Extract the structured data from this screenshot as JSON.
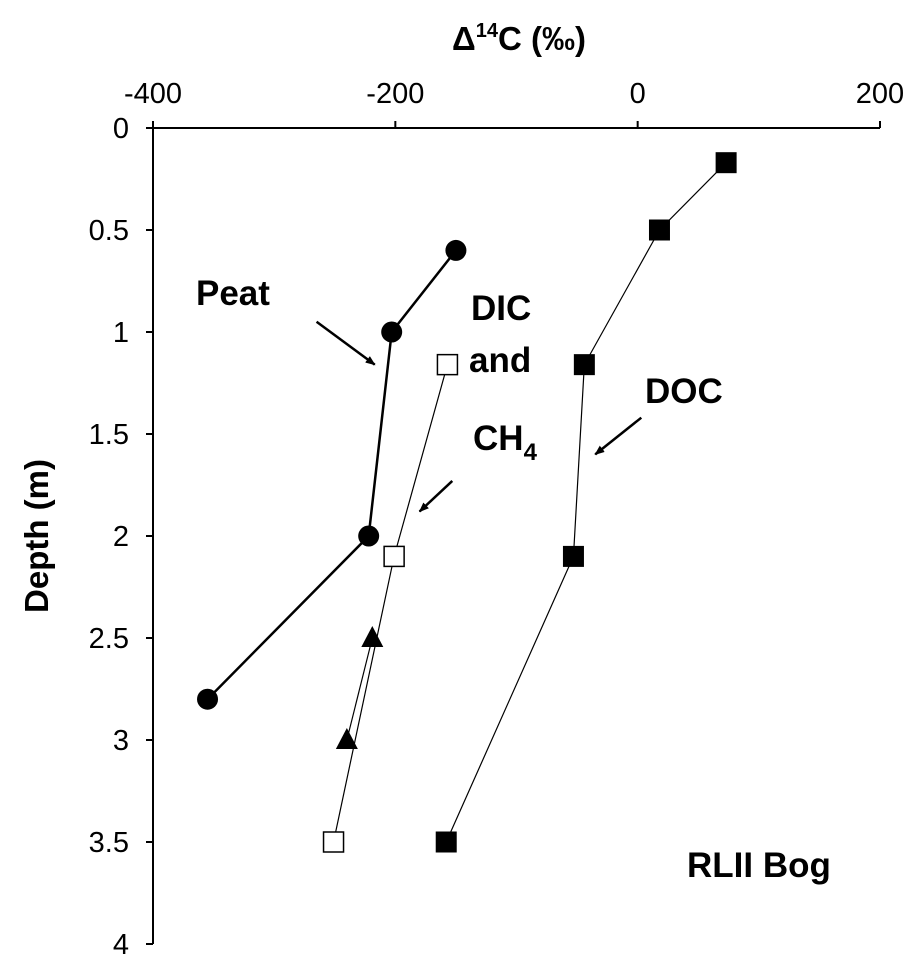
{
  "chart_data": {
    "type": "scatter",
    "title": "",
    "x_axis": {
      "label_main": "Δ",
      "label_sup": "14",
      "label_tail": "C (‰)",
      "position": "top",
      "range": [
        -400,
        200
      ],
      "ticks": [
        -400,
        -200,
        0,
        200
      ]
    },
    "y_axis": {
      "label": "Depth (m)",
      "range": [
        0,
        4
      ],
      "inverted": true,
      "ticks": [
        0,
        0.5,
        1,
        1.5,
        2,
        2.5,
        3,
        3.5,
        4
      ],
      "tick_labels": [
        "0",
        "0.5",
        "1",
        "1.5",
        "2",
        "2.5",
        "3",
        "3.5",
        "4"
      ]
    },
    "grid": false,
    "legend": "none",
    "series": [
      {
        "key": "peat",
        "marker": "circle-filled",
        "line": "thick",
        "points": [
          [
            -150,
            0.6
          ],
          [
            -203,
            1.0
          ],
          [
            -222,
            2.0
          ],
          [
            -355,
            2.8
          ]
        ]
      },
      {
        "key": "dic",
        "marker": "square-open",
        "line": "thin",
        "points": [
          [
            -157,
            1.16
          ],
          [
            -201,
            2.1
          ],
          [
            -251,
            3.5
          ]
        ]
      },
      {
        "key": "ch4",
        "marker": "triangle-filled",
        "line": "thin",
        "points": [
          [
            -219,
            2.5
          ],
          [
            -240,
            3.0
          ]
        ]
      },
      {
        "key": "doc",
        "marker": "square-filled",
        "line": "thin",
        "points": [
          [
            73,
            0.17
          ],
          [
            18,
            0.5
          ],
          [
            -44,
            1.16
          ],
          [
            -53,
            2.1
          ],
          [
            -158,
            3.5
          ]
        ]
      }
    ],
    "annotations": {
      "peat": "Peat",
      "dic_line1": "DIC",
      "dic_line2": "and",
      "ch4_main": "CH",
      "ch4_sub": "4",
      "doc": "DOC",
      "site": "RLII Bog"
    },
    "arrows": [
      {
        "from": [
          -265,
          0.95
        ],
        "to": [
          -217,
          1.16
        ]
      },
      {
        "from": [
          -153,
          1.73
        ],
        "to": [
          -180,
          1.88
        ]
      },
      {
        "from": [
          3,
          1.42
        ],
        "to": [
          -35,
          1.6
        ]
      }
    ]
  }
}
